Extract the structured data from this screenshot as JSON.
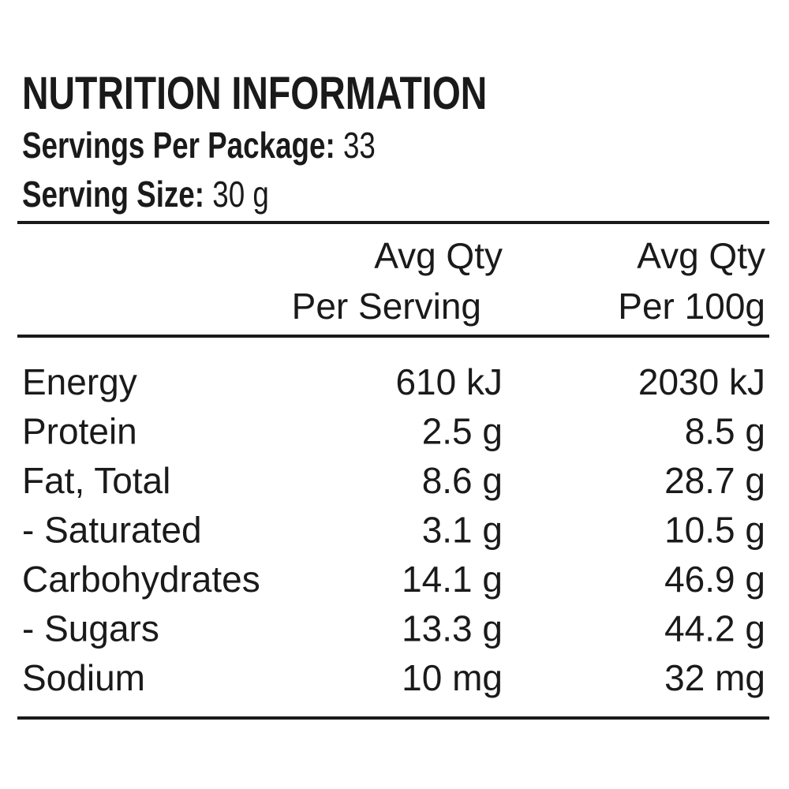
{
  "header": {
    "title": "NUTRITION INFORMATION",
    "servings_per_package": {
      "label": "Servings Per Package:",
      "value": "33"
    },
    "serving_size": {
      "label": "Serving Size:",
      "value": "30 g"
    }
  },
  "table": {
    "columns": [
      {
        "line1": "Avg Qty",
        "line2": "Per Serving"
      },
      {
        "line1": "Avg Qty",
        "line2": "Per 100g"
      }
    ],
    "rows": [
      [
        "Energy",
        "610 kJ",
        "2030 kJ"
      ],
      [
        "Protein",
        "2.5 g",
        "8.5 g"
      ],
      [
        "Fat, Total",
        "8.6 g",
        "28.7 g"
      ],
      [
        "- Saturated",
        "3.1 g",
        "10.5 g"
      ],
      [
        "Carbohydrates",
        "14.1 g",
        "46.9 g"
      ],
      [
        "- Sugars",
        "13.3 g",
        "44.2 g"
      ],
      [
        "Sodium",
        "10 mg",
        "32 mg"
      ]
    ]
  }
}
